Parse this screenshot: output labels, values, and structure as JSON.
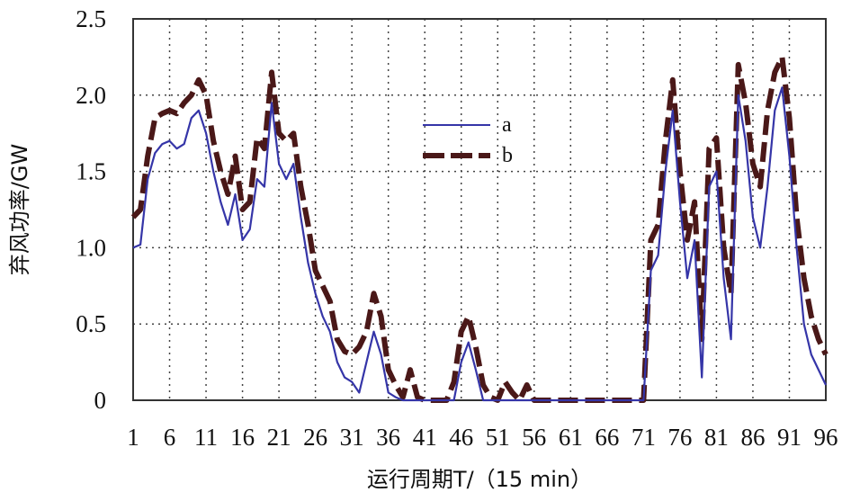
{
  "chart_data": {
    "type": "line",
    "title": "",
    "xlabel": "运行周期T/（15 min）",
    "ylabel": "弃风功率/GW",
    "xlim": [
      1,
      96
    ],
    "ylim": [
      0,
      2.5
    ],
    "grid": true,
    "legend_position": "upper-middle",
    "x_ticks": [
      "1",
      "6",
      "11",
      "16",
      "21",
      "26",
      "31",
      "36",
      "41",
      "46",
      "51",
      "56",
      "61",
      "66",
      "71",
      "76",
      "81",
      "86",
      "91",
      "96"
    ],
    "y_ticks": [
      "0",
      "0.5",
      "1.0",
      "1.5",
      "2.0",
      "2.5"
    ],
    "x": [
      1,
      2,
      3,
      4,
      5,
      6,
      7,
      8,
      9,
      10,
      11,
      12,
      13,
      14,
      15,
      16,
      17,
      18,
      19,
      20,
      21,
      22,
      23,
      24,
      25,
      26,
      27,
      28,
      29,
      30,
      31,
      32,
      33,
      34,
      35,
      36,
      37,
      38,
      39,
      40,
      41,
      42,
      43,
      44,
      45,
      46,
      47,
      48,
      49,
      50,
      51,
      52,
      53,
      54,
      55,
      56,
      57,
      58,
      59,
      60,
      61,
      62,
      63,
      64,
      65,
      66,
      67,
      68,
      69,
      70,
      71,
      72,
      73,
      74,
      75,
      76,
      77,
      78,
      79,
      80,
      81,
      82,
      83,
      84,
      85,
      86,
      87,
      88,
      89,
      90,
      91,
      92,
      93,
      94,
      95,
      96
    ],
    "series": [
      {
        "name": "a",
        "color": "#3535a8",
        "style": "solid",
        "values": [
          1.0,
          1.02,
          1.45,
          1.62,
          1.68,
          1.7,
          1.65,
          1.68,
          1.85,
          1.9,
          1.75,
          1.5,
          1.3,
          1.15,
          1.35,
          1.05,
          1.12,
          1.45,
          1.4,
          1.95,
          1.55,
          1.45,
          1.55,
          1.2,
          0.9,
          0.7,
          0.55,
          0.45,
          0.25,
          0.15,
          0.12,
          0.05,
          0.25,
          0.45,
          0.3,
          0.05,
          0.02,
          0.0,
          0.0,
          0.0,
          0.0,
          0.0,
          0.0,
          0.0,
          0.0,
          0.25,
          0.38,
          0.2,
          0.0,
          0.0,
          0.0,
          0.0,
          0.0,
          0.0,
          0.0,
          0.0,
          0.0,
          0.0,
          0.0,
          0.0,
          0.0,
          0.0,
          0.0,
          0.0,
          0.0,
          0.0,
          0.0,
          0.0,
          0.0,
          0.0,
          0.0,
          0.85,
          0.95,
          1.5,
          1.9,
          1.3,
          0.8,
          1.05,
          0.15,
          1.4,
          1.5,
          0.8,
          0.4,
          2.0,
          1.7,
          1.2,
          1.0,
          1.4,
          1.9,
          2.05,
          1.6,
          1.0,
          0.5,
          0.3,
          0.2,
          0.1
        ]
      },
      {
        "name": "b",
        "color": "#4a1818",
        "style": "dashed",
        "values": [
          1.2,
          1.25,
          1.6,
          1.85,
          1.88,
          1.9,
          1.88,
          1.95,
          2.0,
          2.1,
          2.0,
          1.7,
          1.5,
          1.35,
          1.6,
          1.25,
          1.3,
          1.72,
          1.65,
          2.15,
          1.75,
          1.7,
          1.75,
          1.4,
          1.15,
          0.85,
          0.75,
          0.65,
          0.4,
          0.32,
          0.3,
          0.35,
          0.45,
          0.7,
          0.55,
          0.2,
          0.1,
          0.02,
          0.2,
          0.02,
          0.0,
          0.0,
          0.0,
          0.0,
          0.12,
          0.45,
          0.55,
          0.35,
          0.1,
          0.02,
          0.0,
          0.12,
          0.05,
          0.0,
          0.1,
          0.0,
          0.0,
          0.0,
          0.0,
          0.0,
          0.0,
          0.0,
          0.0,
          0.0,
          0.0,
          0.0,
          0.0,
          0.0,
          0.0,
          0.0,
          0.0,
          1.05,
          1.15,
          1.7,
          2.1,
          1.5,
          1.05,
          1.3,
          0.4,
          1.65,
          1.72,
          1.0,
          0.7,
          2.2,
          1.95,
          1.55,
          1.4,
          1.9,
          2.15,
          2.25,
          1.85,
          1.2,
          0.8,
          0.55,
          0.4,
          0.3
        ]
      }
    ]
  }
}
